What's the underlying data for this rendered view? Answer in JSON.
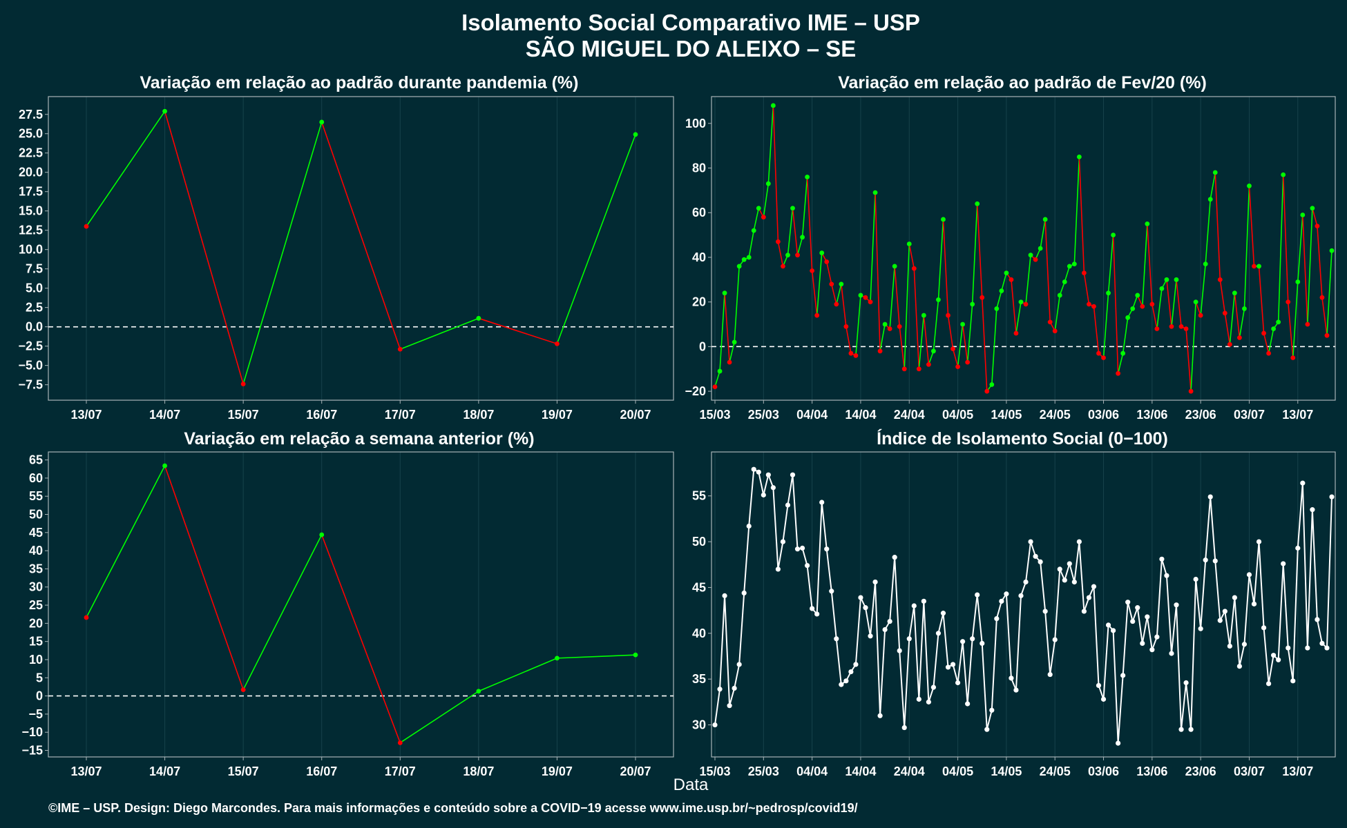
{
  "title": "Isolamento Social Comparativo IME – USP",
  "subtitle": "SÃO MIGUEL DO ALEIXO – SE",
  "xlabel": "Data",
  "footer": "©IME – USP. Design: Diego Marcondes. Para mais informações e conteúdo sobre a COVID−19 acesse www.ime.usp.br/~pedrosp/covid19/",
  "colors": {
    "background": "#022a33",
    "increase": "#00ff00",
    "decrease": "#ff0000",
    "index": "#ffffff",
    "axis": "#a9b4b7",
    "grid": "#17424b"
  },
  "chart_data": [
    {
      "type": "line",
      "title": "Variação em relação ao padrão durante pandemia (%)",
      "categories": [
        "13/07",
        "14/07",
        "15/07",
        "16/07",
        "17/07",
        "18/07",
        "19/07",
        "20/07"
      ],
      "values": [
        13.0,
        27.9,
        -7.4,
        26.5,
        -2.9,
        1.1,
        -2.2,
        24.9
      ],
      "ylim": [
        -9.5,
        29.8
      ],
      "yticks": [
        "27.5",
        "25.0",
        "22.5",
        "20.0",
        "17.5",
        "15.0",
        "12.5",
        "10.0",
        "7.5",
        "5.0",
        "2.5",
        "0.0",
        "−2.5",
        "−5.0",
        "−7.5"
      ],
      "reference_line": 0,
      "color_rule": "green segment when value rises, red when it falls"
    },
    {
      "type": "line",
      "title": "Variação em relação ao padrão de Fev/20 (%)",
      "x": [
        "15/03",
        "16/03",
        "17/03",
        "18/03",
        "19/03",
        "20/03",
        "21/03",
        "22/03",
        "23/03",
        "24/03",
        "25/03",
        "26/03",
        "27/03",
        "28/03",
        "29/03",
        "30/03",
        "31/03",
        "01/04",
        "02/04",
        "03/04",
        "04/04",
        "05/04",
        "06/04",
        "07/04",
        "08/04",
        "09/04",
        "10/04",
        "11/04",
        "12/04",
        "13/04",
        "14/04",
        "15/04",
        "16/04",
        "17/04",
        "18/04",
        "19/04",
        "20/04",
        "21/04",
        "22/04",
        "23/04",
        "24/04",
        "25/04",
        "26/04",
        "27/04",
        "28/04",
        "29/04",
        "30/04",
        "01/05",
        "02/05",
        "03/05",
        "04/05",
        "05/05",
        "06/05",
        "07/05",
        "08/05",
        "09/05",
        "10/05",
        "11/05",
        "12/05",
        "13/05",
        "14/05",
        "15/05",
        "16/05",
        "17/05",
        "18/05",
        "19/05",
        "20/05",
        "21/05",
        "22/05",
        "23/05",
        "24/05",
        "25/05",
        "26/05",
        "27/05",
        "28/05",
        "29/05",
        "30/05",
        "31/05",
        "01/06",
        "02/06",
        "03/06",
        "04/06",
        "05/06",
        "06/06",
        "07/06",
        "08/06",
        "09/06",
        "10/06",
        "11/06",
        "12/06",
        "13/06",
        "14/06",
        "15/06",
        "16/06",
        "17/06",
        "18/06",
        "19/06",
        "20/06",
        "21/06",
        "22/06",
        "23/06",
        "24/06",
        "25/06",
        "26/06",
        "27/06",
        "28/06",
        "29/06",
        "30/06",
        "01/07",
        "02/07",
        "03/07",
        "04/07",
        "05/07",
        "06/07",
        "07/07",
        "08/07",
        "09/07",
        "10/07",
        "11/07",
        "12/07",
        "13/07",
        "14/07",
        "15/07",
        "16/07",
        "17/07",
        "18/07",
        "19/07",
        "20/07"
      ],
      "values": [
        -18,
        -11,
        24,
        -7,
        2,
        36,
        39,
        40,
        52,
        62,
        58,
        73,
        108,
        47,
        36,
        41,
        62,
        41,
        49,
        76,
        34,
        14,
        42,
        38,
        28,
        19,
        28,
        9,
        -3,
        -4,
        23,
        22,
        20,
        69,
        -2,
        10,
        8,
        36,
        9,
        -10,
        46,
        35,
        -10,
        14,
        -8,
        -2,
        21,
        57,
        14,
        -1,
        -9,
        10,
        -7,
        19,
        64,
        22,
        -20,
        -17,
        17,
        25,
        33,
        30,
        6,
        20,
        19,
        41,
        39,
        44,
        57,
        11,
        7,
        23,
        29,
        36,
        37,
        85,
        33,
        19,
        18,
        -3,
        -5,
        24,
        50,
        -12,
        -3,
        13,
        17,
        23,
        18,
        55,
        19,
        8,
        26,
        30,
        9,
        30,
        9,
        8,
        -20,
        20,
        14,
        37,
        66,
        78,
        30,
        15,
        1,
        24,
        4,
        17,
        72,
        36,
        36,
        6,
        -3,
        8,
        11,
        77,
        20,
        -5,
        29,
        59,
        10,
        62,
        54,
        22,
        5,
        43
      ],
      "xticks": [
        "15/03",
        "25/03",
        "04/04",
        "14/04",
        "24/04",
        "04/05",
        "14/05",
        "24/05",
        "03/06",
        "13/06",
        "23/06",
        "03/07",
        "13/07"
      ],
      "ylim": [
        -24,
        112
      ],
      "yticks": [
        "100",
        "80",
        "60",
        "40",
        "20",
        "0",
        "−20"
      ],
      "reference_line": 0,
      "color_rule": "green segment when value rises, red when it falls"
    },
    {
      "type": "line",
      "title": "Variação em relação a semana anterior (%)",
      "categories": [
        "13/07",
        "14/07",
        "15/07",
        "16/07",
        "17/07",
        "18/07",
        "19/07",
        "20/07"
      ],
      "values": [
        21.6,
        63.4,
        1.7,
        44.4,
        -12.9,
        1.3,
        10.4,
        11.3
      ],
      "ylim": [
        -16.8,
        67.2
      ],
      "yticks": [
        "65",
        "60",
        "55",
        "50",
        "45",
        "40",
        "35",
        "30",
        "25",
        "20",
        "15",
        "10",
        "5",
        "0",
        "−5",
        "−10",
        "−15"
      ],
      "reference_line": 0,
      "color_rule": "green segment when value rises, red when it falls"
    },
    {
      "type": "line",
      "title": "Índice de Isolamento Social (0−100)",
      "x": [
        "15/03",
        "16/03",
        "17/03",
        "18/03",
        "19/03",
        "20/03",
        "21/03",
        "22/03",
        "23/03",
        "24/03",
        "25/03",
        "26/03",
        "27/03",
        "28/03",
        "29/03",
        "30/03",
        "31/03",
        "01/04",
        "02/04",
        "03/04",
        "04/04",
        "05/04",
        "06/04",
        "07/04",
        "08/04",
        "09/04",
        "10/04",
        "11/04",
        "12/04",
        "13/04",
        "14/04",
        "15/04",
        "16/04",
        "17/04",
        "18/04",
        "19/04",
        "20/04",
        "21/04",
        "22/04",
        "23/04",
        "24/04",
        "25/04",
        "26/04",
        "27/04",
        "28/04",
        "29/04",
        "30/04",
        "01/05",
        "02/05",
        "03/05",
        "04/05",
        "05/05",
        "06/05",
        "07/05",
        "08/05",
        "09/05",
        "10/05",
        "11/05",
        "12/05",
        "13/05",
        "14/05",
        "15/05",
        "16/05",
        "17/05",
        "18/05",
        "19/05",
        "20/05",
        "21/05",
        "22/05",
        "23/05",
        "24/05",
        "25/05",
        "26/05",
        "27/05",
        "28/05",
        "29/05",
        "30/05",
        "31/05",
        "01/06",
        "02/06",
        "03/06",
        "04/06",
        "05/06",
        "06/06",
        "07/06",
        "08/06",
        "09/06",
        "10/06",
        "11/06",
        "12/06",
        "13/06",
        "14/06",
        "15/06",
        "16/06",
        "17/06",
        "18/06",
        "19/06",
        "20/06",
        "21/06",
        "22/06",
        "23/06",
        "24/06",
        "25/06",
        "26/06",
        "27/06",
        "28/06",
        "29/06",
        "30/06",
        "01/07",
        "02/07",
        "03/07",
        "04/07",
        "05/07",
        "06/07",
        "07/07",
        "08/07",
        "09/07",
        "10/07",
        "11/07",
        "12/07",
        "13/07",
        "14/07",
        "15/07",
        "16/07",
        "17/07",
        "18/07",
        "19/07",
        "20/07"
      ],
      "values": [
        30.0,
        33.9,
        44.1,
        32.1,
        34.0,
        36.6,
        44.4,
        51.7,
        57.9,
        57.6,
        55.1,
        57.3,
        55.9,
        47.0,
        50.0,
        54.0,
        57.3,
        49.2,
        49.3,
        47.4,
        42.7,
        42.1,
        54.3,
        49.2,
        44.6,
        39.4,
        34.4,
        34.8,
        35.8,
        36.6,
        43.9,
        42.8,
        39.7,
        45.6,
        31.0,
        40.4,
        41.3,
        48.3,
        38.1,
        29.7,
        39.4,
        43.0,
        32.8,
        43.5,
        32.5,
        34.1,
        40.0,
        42.2,
        36.3,
        36.6,
        34.6,
        39.1,
        32.3,
        39.4,
        44.2,
        38.9,
        29.5,
        31.6,
        41.6,
        43.5,
        44.3,
        35.1,
        33.8,
        44.1,
        45.6,
        50.0,
        48.4,
        47.8,
        42.4,
        35.5,
        39.3,
        47.0,
        45.8,
        47.6,
        45.6,
        50.0,
        42.4,
        43.9,
        45.1,
        34.3,
        32.8,
        40.9,
        40.3,
        28.0,
        35.4,
        43.4,
        41.3,
        42.8,
        38.9,
        41.8,
        38.2,
        39.6,
        48.1,
        46.3,
        37.8,
        43.1,
        29.5,
        34.6,
        29.5,
        45.9,
        40.5,
        48.0,
        54.9,
        47.9,
        41.4,
        42.4,
        38.6,
        43.9,
        36.4,
        38.8,
        46.4,
        43.2,
        50.0,
        40.6,
        34.5,
        37.6,
        37.1,
        47.6,
        38.4,
        34.8,
        49.3,
        56.4,
        38.4,
        53.5,
        41.5,
        38.9,
        38.4,
        54.9
      ],
      "xticks": [
        "15/03",
        "25/03",
        "04/04",
        "14/04",
        "24/04",
        "04/05",
        "14/05",
        "24/05",
        "03/06",
        "13/06",
        "23/06",
        "03/07",
        "13/07"
      ],
      "ylim": [
        26.5,
        59.8
      ],
      "yticks": [
        "55",
        "50",
        "45",
        "40",
        "35",
        "30"
      ]
    }
  ]
}
